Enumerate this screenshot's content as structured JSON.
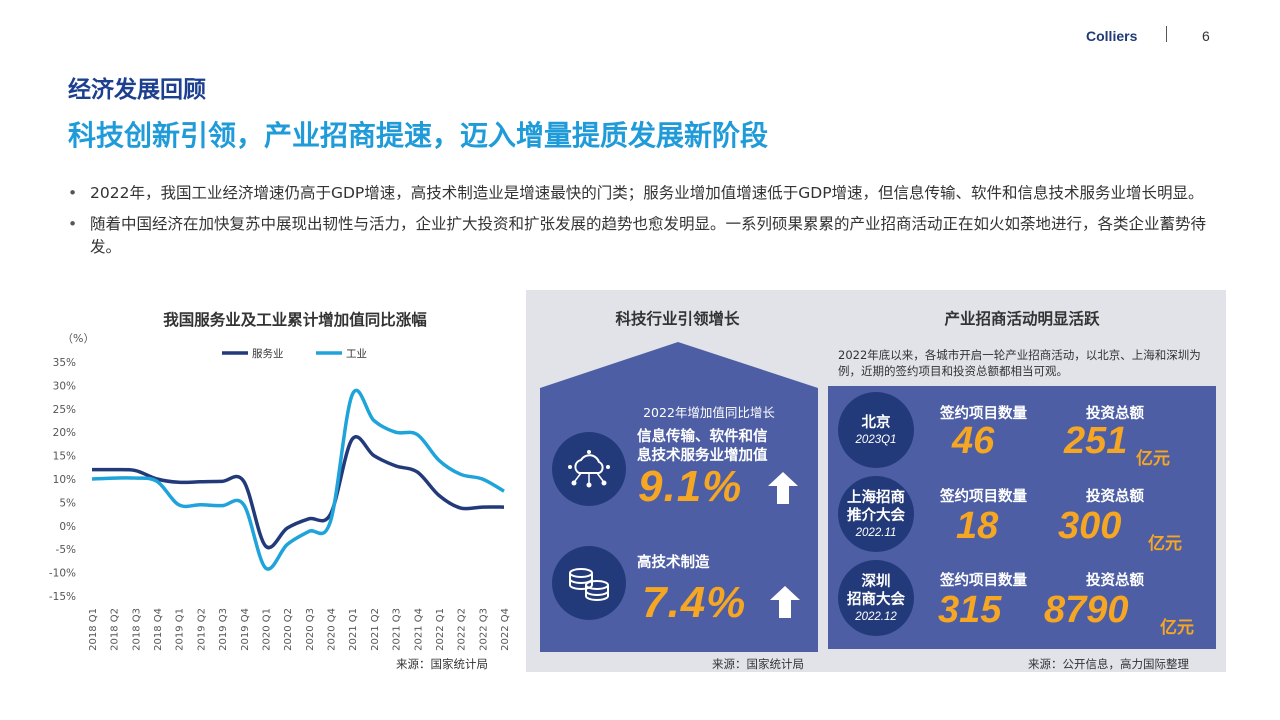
{
  "header": {
    "brand": "Colliers",
    "page": "6"
  },
  "section_title": "经济发展回顾",
  "main_title": "科技创新引领，产业招商提速，迈入增量提质发展新阶段",
  "bullets": [
    "2022年，我国工业经济增速仍高于GDP增速，高技术制造业是增速最快的门类；服务业增加值增速低于GDP增速，但信息传输、软件和信息技术服务业增长明显。",
    "随着中国经济在加快复苏中展现出韧性与活力，企业扩大投资和扩张发展的趋势也愈发明显。一系列硕果累累的产业招商活动正在如火如荼地进行，各类企业蓄势待发。"
  ],
  "chart_data": {
    "type": "line",
    "title": "我国服务业及工业累计增加值同比涨幅",
    "unit_label": "（%）",
    "source": "来源：国家统计局",
    "ylim": [
      -15,
      35
    ],
    "yticks": [
      "35%",
      "30%",
      "25%",
      "20%",
      "15%",
      "10%",
      "5%",
      "0%",
      "-5%",
      "-10%",
      "-15%"
    ],
    "ytick_values": [
      35,
      30,
      25,
      20,
      15,
      10,
      5,
      0,
      -5,
      -10,
      -15
    ],
    "legend_position": "top-center",
    "grid": false,
    "categories": [
      "2018 Q1",
      "2018 Q2",
      "2018 Q3",
      "2018 Q4",
      "2019 Q1",
      "2019 Q2",
      "2019 Q3",
      "2019 Q4",
      "2020 Q1",
      "2020 Q2",
      "2020 Q3",
      "2020 Q4",
      "2021 Q1",
      "2021 Q2",
      "2021 Q3",
      "2021 Q4",
      "2022 Q1",
      "2022 Q2",
      "2022 Q3",
      "2022 Q4"
    ],
    "series": [
      {
        "name": "服务业",
        "color": "#233a7a",
        "values": [
          12.0,
          12.0,
          11.8,
          10.0,
          9.3,
          9.4,
          9.5,
          9.5,
          -4.3,
          -0.5,
          1.5,
          2.5,
          18.5,
          15.0,
          12.8,
          11.5,
          6.5,
          3.8,
          4.0,
          4.0
        ]
      },
      {
        "name": "工业",
        "color": "#1ea3db",
        "values": [
          10.0,
          10.2,
          10.2,
          9.5,
          4.5,
          4.5,
          4.3,
          4.5,
          -9.0,
          -4.0,
          -1.2,
          1.0,
          28.0,
          22.5,
          20.0,
          19.5,
          14.0,
          11.0,
          10.0,
          7.4
        ]
      }
    ]
  },
  "tech_panel": {
    "title": "科技行业引领增长",
    "subtitle": "2022年增加值同比增长",
    "kpis": [
      {
        "label_line1": "信息传输、软件和信",
        "label_line2": "息技术服务业增加值",
        "value": "9.1%",
        "icon": "cloud-network-icon"
      },
      {
        "label_line1": "高技术制造",
        "label_line2": "",
        "value": "7.4%",
        "icon": "coin-stack-icon"
      }
    ],
    "source": "来源：国家统计局"
  },
  "invest_panel": {
    "title": "产业招商活动明显活跃",
    "description": "2022年底以来，各城市开启一轮产业招商活动，以北京、上海和深圳为例，近期的签约项目和投资总额都相当可观。",
    "col_projects": "签约项目数量",
    "col_invest": "投资总额",
    "rows": [
      {
        "city_line1": "北京",
        "city_line2": "",
        "date": "2023Q1",
        "projects": "46",
        "invest": "251",
        "unit": "亿元"
      },
      {
        "city_line1": "上海招商",
        "city_line2": "推介大会",
        "date": "2022.11",
        "projects": "18",
        "invest": "300",
        "unit": "亿元"
      },
      {
        "city_line1": "深圳",
        "city_line2": "招商大会",
        "date": "2022.12",
        "projects": "315",
        "invest": "8790",
        "unit": "亿元"
      }
    ],
    "source": "来源：公开信息，高力国际整理"
  },
  "colors": {
    "panel_bg": "#e1e3e9",
    "blue_box": "#4d5ea4",
    "dark_circle": "#233a7a",
    "accent_orange": "#f5a623",
    "title_blue": "#1d3f8f",
    "headline_cyan": "#1e9bd8"
  }
}
